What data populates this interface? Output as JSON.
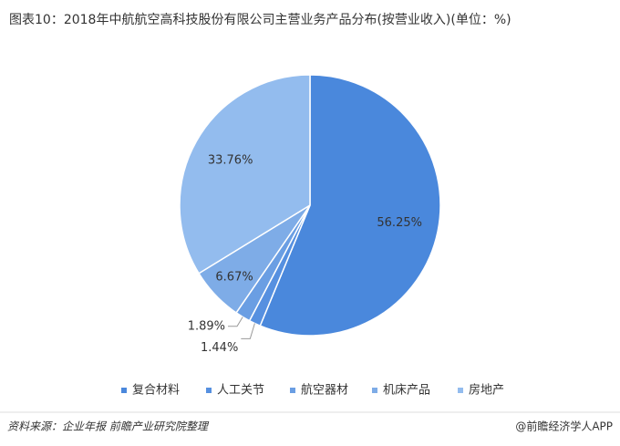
{
  "chart_data": {
    "type": "pie",
    "title": "图表10：2018年中航航空高科技股份有限公司主营业务产品分布(按营业收入)(单位：%)",
    "categories": [
      "复合材料",
      "人工关节",
      "航空器材",
      "机床产品",
      "房地产"
    ],
    "values": [
      56.25,
      1.44,
      1.89,
      6.67,
      33.76
    ],
    "value_labels": [
      "56.25%",
      "1.44%",
      "1.89%",
      "6.67%",
      "33.76%"
    ],
    "colors": [
      "#4a88dc",
      "#5690e0",
      "#6a9ee3",
      "#7eace7",
      "#93bcee"
    ],
    "legend": "bottom",
    "source": "资料来源：企业年报 前瞻产业研究院整理",
    "brand": "@前瞻经济学人APP"
  }
}
